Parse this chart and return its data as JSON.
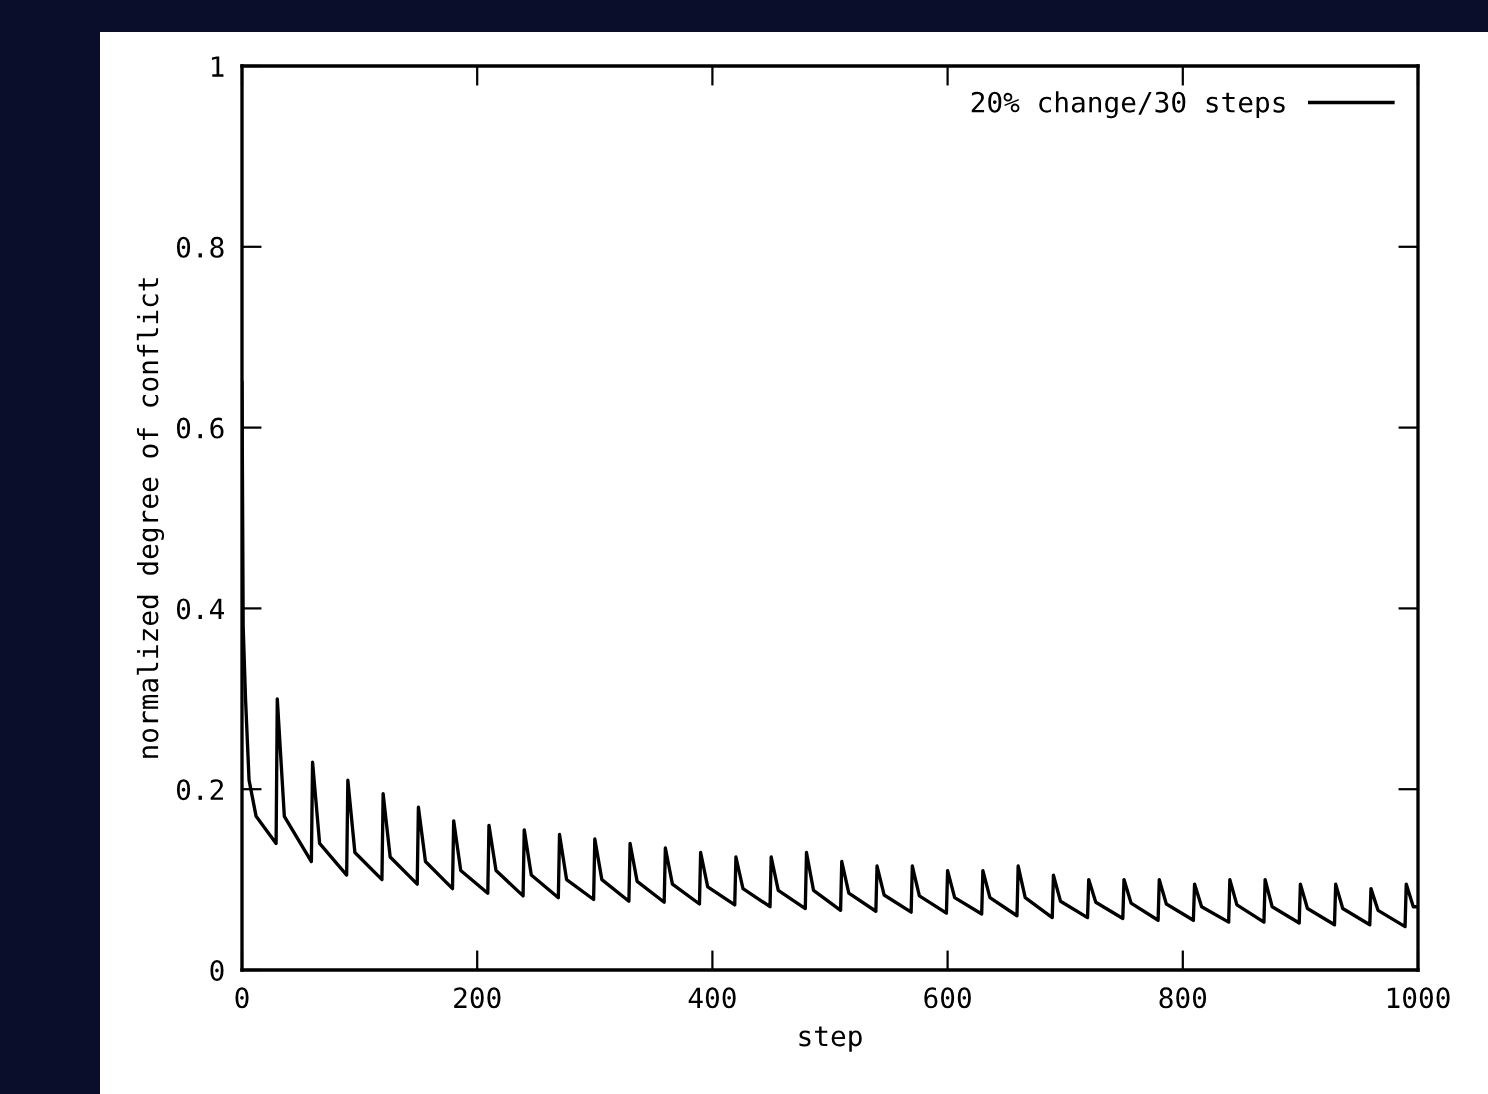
{
  "chart_data": {
    "type": "line",
    "xlabel": "step",
    "ylabel": "normalized degree of conflict",
    "xlim": [
      0,
      1000
    ],
    "ylim": [
      0,
      1
    ],
    "xticks": [
      0,
      200,
      400,
      600,
      800,
      1000
    ],
    "yticks": [
      0,
      {
        "value": 0.2,
        "label": "0.2"
      },
      {
        "value": 0.4,
        "label": "0.4"
      },
      {
        "value": 0.6,
        "label": "0.6"
      },
      {
        "value": 0.8,
        "label": "0.8"
      },
      1
    ],
    "grid": false,
    "legend": "top right",
    "marker": "none",
    "line_style": "solid",
    "series": [
      {
        "name": "20% change/30 steps",
        "color": "#000000",
        "x": [
          0,
          1,
          3,
          6,
          12,
          29,
          30,
          36,
          59,
          60,
          66,
          89,
          90,
          96,
          119,
          120,
          126,
          149,
          150,
          156,
          179,
          180,
          186,
          209,
          210,
          216,
          239,
          240,
          246,
          269,
          270,
          276,
          299,
          300,
          306,
          329,
          330,
          336,
          359,
          360,
          366,
          389,
          390,
          396,
          419,
          420,
          426,
          449,
          450,
          456,
          479,
          480,
          486,
          509,
          510,
          516,
          539,
          540,
          546,
          569,
          570,
          576,
          599,
          600,
          606,
          629,
          630,
          636,
          659,
          660,
          666,
          689,
          690,
          696,
          719,
          720,
          726,
          749,
          750,
          756,
          779,
          780,
          786,
          809,
          810,
          816,
          839,
          840,
          846,
          869,
          870,
          876,
          899,
          900,
          906,
          929,
          930,
          936,
          959,
          960,
          966,
          989,
          990,
          996,
          1000
        ],
        "values": [
          0.65,
          0.38,
          0.3,
          0.21,
          0.17,
          0.14,
          0.3,
          0.17,
          0.12,
          0.23,
          0.14,
          0.105,
          0.21,
          0.13,
          0.1,
          0.195,
          0.125,
          0.095,
          0.18,
          0.12,
          0.09,
          0.165,
          0.11,
          0.085,
          0.16,
          0.11,
          0.082,
          0.155,
          0.105,
          0.08,
          0.15,
          0.1,
          0.078,
          0.145,
          0.1,
          0.076,
          0.14,
          0.098,
          0.075,
          0.135,
          0.095,
          0.073,
          0.13,
          0.092,
          0.072,
          0.125,
          0.09,
          0.07,
          0.125,
          0.088,
          0.068,
          0.13,
          0.088,
          0.066,
          0.12,
          0.085,
          0.065,
          0.115,
          0.083,
          0.064,
          0.115,
          0.082,
          0.063,
          0.11,
          0.08,
          0.062,
          0.11,
          0.08,
          0.06,
          0.115,
          0.08,
          0.058,
          0.105,
          0.076,
          0.058,
          0.1,
          0.075,
          0.057,
          0.1,
          0.074,
          0.055,
          0.1,
          0.073,
          0.055,
          0.095,
          0.07,
          0.053,
          0.1,
          0.072,
          0.053,
          0.1,
          0.07,
          0.052,
          0.095,
          0.068,
          0.05,
          0.095,
          0.068,
          0.05,
          0.09,
          0.066,
          0.048,
          0.095,
          0.07,
          0.07
        ]
      }
    ]
  }
}
